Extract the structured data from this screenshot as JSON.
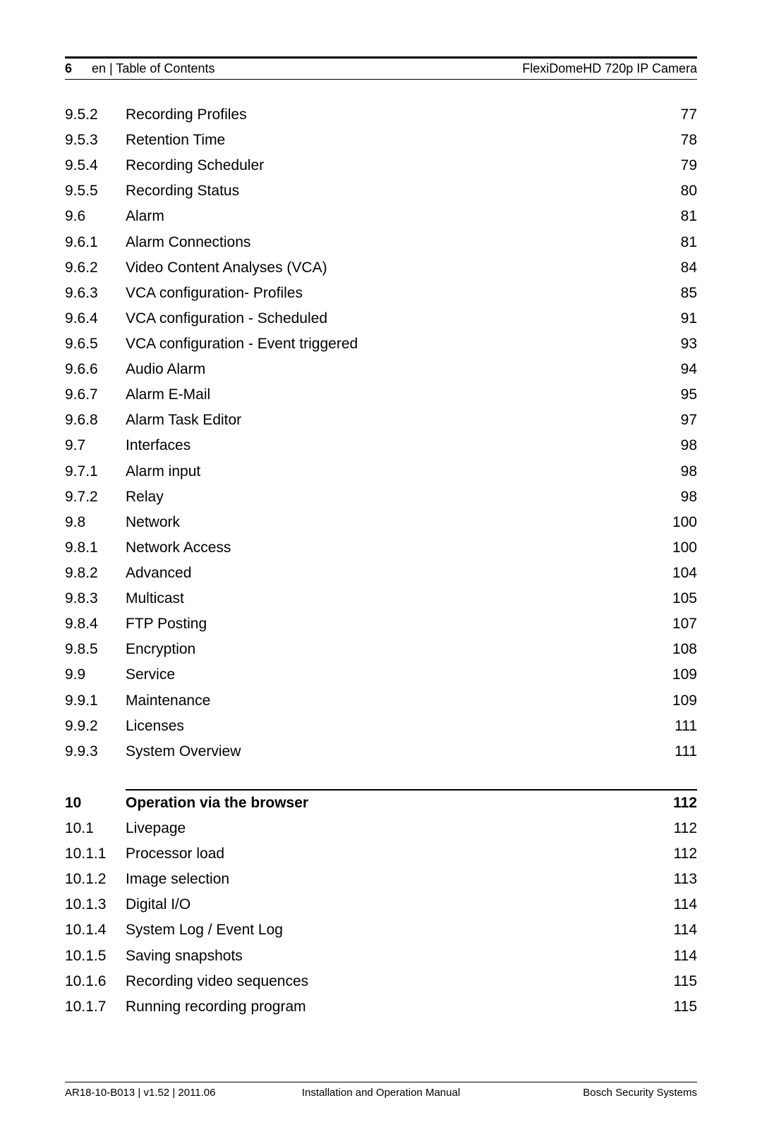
{
  "header": {
    "pageNumber": "6",
    "leftTitle": "en | Table of Contents",
    "rightTitle": "FlexiDomeHD 720p IP Camera"
  },
  "toc": [
    {
      "num": "9.5.2",
      "title": "Recording Profiles",
      "page": "77",
      "bold": false
    },
    {
      "num": "9.5.3",
      "title": "Retention Time",
      "page": "78",
      "bold": false
    },
    {
      "num": "9.5.4",
      "title": "Recording Scheduler",
      "page": "79",
      "bold": false
    },
    {
      "num": "9.5.5",
      "title": "Recording Status",
      "page": "80",
      "bold": false
    },
    {
      "num": "9.6",
      "title": "Alarm",
      "page": "81",
      "bold": false
    },
    {
      "num": "9.6.1",
      "title": "Alarm Connections",
      "page": "81",
      "bold": false
    },
    {
      "num": "9.6.2",
      "title": "Video Content Analyses (VCA)",
      "page": "84",
      "bold": false
    },
    {
      "num": "9.6.3",
      "title": "VCA configuration- Profiles",
      "page": "85",
      "bold": false
    },
    {
      "num": "9.6.4",
      "title": "VCA configuration - Scheduled",
      "page": "91",
      "bold": false
    },
    {
      "num": "9.6.5",
      "title": "VCA configuration - Event triggered",
      "page": "93",
      "bold": false
    },
    {
      "num": "9.6.6",
      "title": "Audio Alarm",
      "page": "94",
      "bold": false
    },
    {
      "num": "9.6.7",
      "title": "Alarm E-Mail",
      "page": "95",
      "bold": false
    },
    {
      "num": "9.6.8",
      "title": "Alarm Task Editor",
      "page": "97",
      "bold": false
    },
    {
      "num": "9.7",
      "title": "Interfaces",
      "page": "98",
      "bold": false
    },
    {
      "num": "9.7.1",
      "title": "Alarm input",
      "page": "98",
      "bold": false
    },
    {
      "num": "9.7.2",
      "title": "Relay",
      "page": "98",
      "bold": false
    },
    {
      "num": "9.8",
      "title": "Network",
      "page": "100",
      "bold": false
    },
    {
      "num": "9.8.1",
      "title": "Network Access",
      "page": "100",
      "bold": false
    },
    {
      "num": "9.8.2",
      "title": "Advanced",
      "page": "104",
      "bold": false
    },
    {
      "num": "9.8.3",
      "title": "Multicast",
      "page": "105",
      "bold": false
    },
    {
      "num": "9.8.4",
      "title": "FTP Posting",
      "page": "107",
      "bold": false
    },
    {
      "num": "9.8.5",
      "title": "Encryption",
      "page": "108",
      "bold": false
    },
    {
      "num": "9.9",
      "title": "Service",
      "page": "109",
      "bold": false
    },
    {
      "num": "9.9.1",
      "title": "Maintenance",
      "page": "109",
      "bold": false
    },
    {
      "num": "9.9.2",
      "title": "Licenses",
      "page": "111",
      "bold": false
    },
    {
      "num": "9.9.3",
      "title": "System Overview",
      "page": "111",
      "bold": false
    }
  ],
  "toc2": [
    {
      "num": "10",
      "title": "Operation via the browser",
      "page": "112",
      "bold": true
    },
    {
      "num": "10.1",
      "title": "Livepage",
      "page": "112",
      "bold": false
    },
    {
      "num": "10.1.1",
      "title": "Processor load",
      "page": "112",
      "bold": false
    },
    {
      "num": "10.1.2",
      "title": "Image selection",
      "page": "113",
      "bold": false
    },
    {
      "num": "10.1.3",
      "title": "Digital I/O",
      "page": "114",
      "bold": false
    },
    {
      "num": "10.1.4",
      "title": "System Log / Event Log",
      "page": "114",
      "bold": false
    },
    {
      "num": "10.1.5",
      "title": "Saving snapshots",
      "page": "114",
      "bold": false
    },
    {
      "num": "10.1.6",
      "title": "Recording video sequences",
      "page": "115",
      "bold": false
    },
    {
      "num": "10.1.7",
      "title": "Running recording program",
      "page": "115",
      "bold": false
    }
  ],
  "footer": {
    "left": "AR18-10-B013 | v1.52 | 2011.06",
    "center": "Installation and Operation Manual",
    "right": "Bosch Security Systems"
  }
}
